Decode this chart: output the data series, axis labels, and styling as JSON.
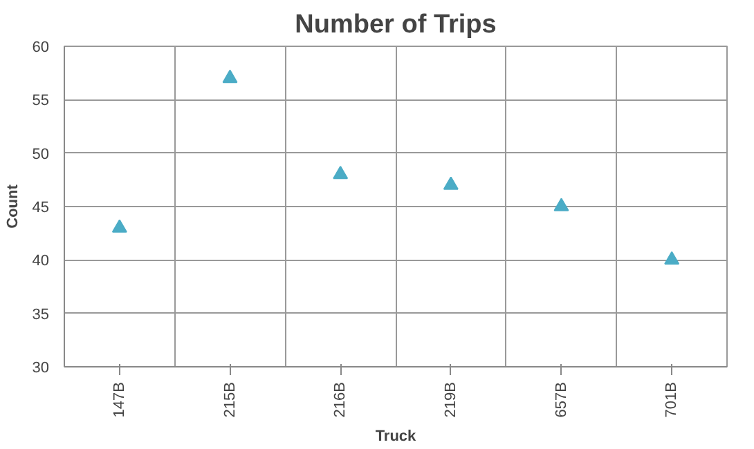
{
  "chart_data": {
    "type": "scatter",
    "title": "Number of Trips",
    "xlabel": "Truck",
    "ylabel": "Count",
    "categories": [
      "147B",
      "215B",
      "216B",
      "219B",
      "657B",
      "701B"
    ],
    "series": [
      {
        "color": "#4bacc6",
        "values": [
          43,
          57,
          48,
          47,
          45,
          40
        ]
      }
    ],
    "ylim": [
      30,
      60
    ],
    "yticks": [
      30,
      35,
      40,
      45,
      50,
      55,
      60
    ],
    "grid": true,
    "marker": "triangle"
  }
}
